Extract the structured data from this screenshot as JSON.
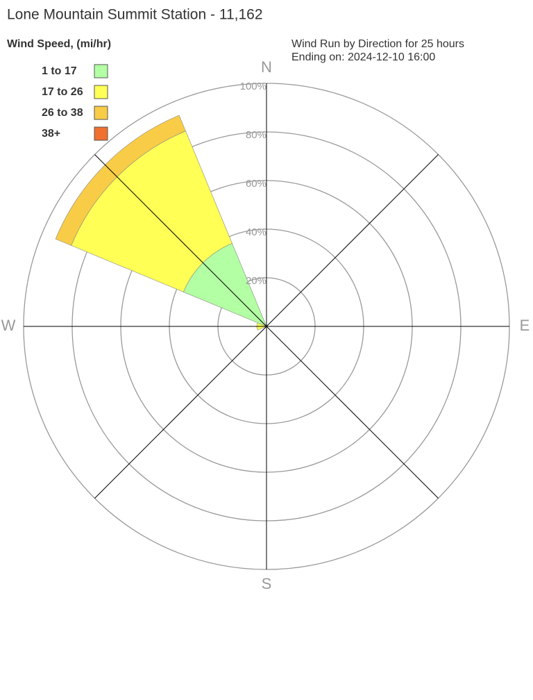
{
  "chart_data": {
    "type": "windrose",
    "title": "Lone Mountain Summit Station - 11,162",
    "legend_title": "Wind Speed, (mi/hr)",
    "subtitle": [
      "Wind Run by Direction for 25 hours",
      "Ending on: 2024-12-10 16:00"
    ],
    "categories": [
      "N",
      null,
      "E",
      null,
      "S",
      null,
      "W",
      null
    ],
    "series": [
      {
        "name": "1 to 17",
        "color": "#b3ffa3",
        "values": [
          0,
          0,
          0,
          0,
          0,
          0,
          0,
          37
        ]
      },
      {
        "name": "17 to 26",
        "color": "#ffff55",
        "values": [
          0,
          0,
          0,
          0,
          0,
          0,
          4,
          50
        ]
      },
      {
        "name": "26 to 38",
        "color": "#f8cc46",
        "values": [
          0,
          0,
          0,
          0,
          0,
          0,
          0,
          7
        ]
      },
      {
        "name": "38+",
        "color": "#f07030",
        "values": [
          0,
          0,
          0,
          0,
          0,
          0,
          0,
          0
        ]
      }
    ],
    "ylim": [
      0,
      100
    ],
    "yticks": [
      {
        "value": 20,
        "label": "20%"
      },
      {
        "value": 40,
        "label": "40%"
      },
      {
        "value": 60,
        "label": "60%"
      },
      {
        "value": 80,
        "label": "80%"
      },
      {
        "value": 100,
        "label": "100%"
      }
    ]
  }
}
